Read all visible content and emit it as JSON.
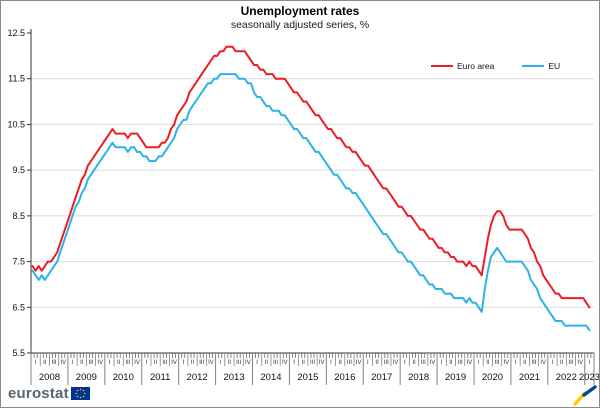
{
  "chart": {
    "title": "Unemployment rates",
    "subtitle": "seasonally adjusted series, %"
  },
  "legend": [
    {
      "label": "Euro area",
      "color": "#ed1c24"
    },
    {
      "label": "EU",
      "color": "#2bb3e6"
    }
  ],
  "footer": {
    "logo_text": "eurostat"
  },
  "icons": {
    "eu_flag": "eu-flag-icon",
    "corner_mark": "yellow-blue-check-icon"
  },
  "colors": {
    "euro_area": "#ed1c24",
    "eu": "#2bb3e6",
    "gridline": "#dcdcdc",
    "axis": "#333333",
    "eu_flag_blue": "#003399",
    "eu_flag_stars": "#ffcc00",
    "logo_text": "#5a6672"
  },
  "chart_data": {
    "type": "line",
    "title": "Unemployment rates",
    "subtitle": "seasonally adjusted series, %",
    "x_unit": "month",
    "x_start": "2008-01",
    "x_end": "2023-02",
    "years": [
      "2008",
      "2009",
      "2010",
      "2011",
      "2012",
      "2013",
      "2014",
      "2015",
      "2016",
      "2017",
      "2018",
      "2019",
      "2020",
      "2021",
      "2022",
      "2023"
    ],
    "quarter_labels": [
      "I",
      "II",
      "III",
      "IV"
    ],
    "ylim": [
      5.5,
      12.5
    ],
    "y_ticks": [
      5.5,
      6.5,
      7.5,
      8.5,
      9.5,
      10.5,
      11.5,
      12.5
    ],
    "grid": "horizontal",
    "legend_position": "top-right-inside",
    "series": [
      {
        "name": "Euro area",
        "color": "#ed1c24",
        "values": [
          7.4,
          7.3,
          7.4,
          7.3,
          7.4,
          7.5,
          7.5,
          7.6,
          7.7,
          7.9,
          8.1,
          8.3,
          8.5,
          8.7,
          8.9,
          9.1,
          9.3,
          9.4,
          9.6,
          9.7,
          9.8,
          9.9,
          10.0,
          10.1,
          10.2,
          10.3,
          10.4,
          10.3,
          10.3,
          10.3,
          10.3,
          10.2,
          10.3,
          10.3,
          10.3,
          10.2,
          10.1,
          10.0,
          10.0,
          10.0,
          10.0,
          10.0,
          10.1,
          10.1,
          10.2,
          10.4,
          10.5,
          10.7,
          10.8,
          10.9,
          11.0,
          11.2,
          11.3,
          11.4,
          11.5,
          11.6,
          11.7,
          11.8,
          11.9,
          12.0,
          12.0,
          12.1,
          12.1,
          12.2,
          12.2,
          12.2,
          12.1,
          12.1,
          12.1,
          12.1,
          12.0,
          11.9,
          11.8,
          11.8,
          11.7,
          11.7,
          11.6,
          11.6,
          11.6,
          11.5,
          11.5,
          11.5,
          11.5,
          11.4,
          11.3,
          11.2,
          11.2,
          11.1,
          11.0,
          11.0,
          10.9,
          10.8,
          10.7,
          10.7,
          10.6,
          10.5,
          10.4,
          10.4,
          10.3,
          10.2,
          10.2,
          10.1,
          10.0,
          10.0,
          9.9,
          9.9,
          9.8,
          9.7,
          9.6,
          9.6,
          9.5,
          9.4,
          9.3,
          9.2,
          9.1,
          9.1,
          9.0,
          8.9,
          8.8,
          8.7,
          8.7,
          8.6,
          8.5,
          8.5,
          8.4,
          8.3,
          8.2,
          8.2,
          8.1,
          8.0,
          8.0,
          7.9,
          7.8,
          7.8,
          7.7,
          7.7,
          7.6,
          7.6,
          7.5,
          7.5,
          7.5,
          7.4,
          7.5,
          7.4,
          7.4,
          7.3,
          7.2,
          7.6,
          8.0,
          8.3,
          8.5,
          8.6,
          8.6,
          8.5,
          8.3,
          8.2,
          8.2,
          8.2,
          8.2,
          8.2,
          8.1,
          8.0,
          7.8,
          7.7,
          7.5,
          7.4,
          7.2,
          7.1,
          7.0,
          6.9,
          6.8,
          6.8,
          6.7,
          6.7,
          6.7,
          6.7,
          6.7,
          6.7,
          6.7,
          6.7,
          6.6,
          6.5
        ]
      },
      {
        "name": "EU",
        "color": "#2bb3e6",
        "values": [
          7.3,
          7.2,
          7.1,
          7.2,
          7.1,
          7.2,
          7.3,
          7.4,
          7.5,
          7.7,
          7.9,
          8.1,
          8.3,
          8.5,
          8.7,
          8.8,
          9.0,
          9.1,
          9.3,
          9.4,
          9.5,
          9.6,
          9.7,
          9.8,
          9.9,
          10.0,
          10.1,
          10.0,
          10.0,
          10.0,
          10.0,
          9.9,
          10.0,
          10.0,
          9.9,
          9.9,
          9.8,
          9.8,
          9.7,
          9.7,
          9.7,
          9.8,
          9.8,
          9.9,
          10.0,
          10.1,
          10.2,
          10.4,
          10.5,
          10.6,
          10.6,
          10.8,
          10.9,
          11.0,
          11.1,
          11.2,
          11.3,
          11.4,
          11.4,
          11.5,
          11.5,
          11.6,
          11.6,
          11.6,
          11.6,
          11.6,
          11.6,
          11.5,
          11.5,
          11.5,
          11.4,
          11.4,
          11.2,
          11.1,
          11.1,
          11.0,
          10.9,
          10.9,
          10.8,
          10.8,
          10.8,
          10.7,
          10.7,
          10.6,
          10.5,
          10.4,
          10.4,
          10.3,
          10.2,
          10.2,
          10.1,
          10.0,
          9.9,
          9.9,
          9.8,
          9.7,
          9.6,
          9.5,
          9.4,
          9.4,
          9.3,
          9.2,
          9.1,
          9.1,
          9.0,
          9.0,
          8.9,
          8.8,
          8.7,
          8.6,
          8.5,
          8.4,
          8.3,
          8.2,
          8.1,
          8.1,
          8.0,
          7.9,
          7.8,
          7.7,
          7.7,
          7.6,
          7.5,
          7.5,
          7.4,
          7.3,
          7.2,
          7.2,
          7.1,
          7.0,
          7.0,
          6.9,
          6.9,
          6.9,
          6.8,
          6.8,
          6.8,
          6.7,
          6.7,
          6.7,
          6.7,
          6.6,
          6.7,
          6.6,
          6.6,
          6.5,
          6.4,
          6.9,
          7.3,
          7.6,
          7.7,
          7.8,
          7.7,
          7.6,
          7.5,
          7.5,
          7.5,
          7.5,
          7.5,
          7.5,
          7.4,
          7.3,
          7.1,
          7.0,
          6.9,
          6.7,
          6.6,
          6.5,
          6.4,
          6.3,
          6.2,
          6.2,
          6.2,
          6.1,
          6.1,
          6.1,
          6.1,
          6.1,
          6.1,
          6.1,
          6.1,
          6.0
        ]
      }
    ]
  }
}
